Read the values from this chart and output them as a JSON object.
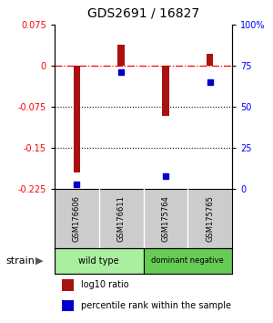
{
  "title": "GDS2691 / 16827",
  "samples": [
    "GSM176606",
    "GSM176611",
    "GSM175764",
    "GSM175765"
  ],
  "log10_ratio": [
    -0.195,
    0.038,
    -0.092,
    0.022
  ],
  "percentile_rank": [
    3,
    71,
    8,
    65
  ],
  "groups": [
    {
      "label": "wild type",
      "samples": [
        0,
        1
      ],
      "color": "#aaeea0"
    },
    {
      "label": "dominant negative",
      "samples": [
        2,
        3
      ],
      "color": "#66cc55"
    }
  ],
  "bar_color": "#aa1111",
  "dot_color": "#0000cc",
  "ylim_left": [
    -0.225,
    0.075
  ],
  "ylim_right": [
    0,
    100
  ],
  "yticks_left": [
    0.075,
    0,
    -0.075,
    -0.15,
    -0.225
  ],
  "yticks_right": [
    100,
    75,
    50,
    25,
    0
  ],
  "ytick_right_labels": [
    "100%",
    "75",
    "50",
    "25",
    "0"
  ],
  "dotted_lines": [
    -0.075,
    -0.15
  ],
  "background_color": "#ffffff",
  "strain_label": "strain",
  "legend_red": "log10 ratio",
  "legend_blue": "percentile rank within the sample",
  "label_row_color": "#cccccc",
  "bar_width": 0.15
}
